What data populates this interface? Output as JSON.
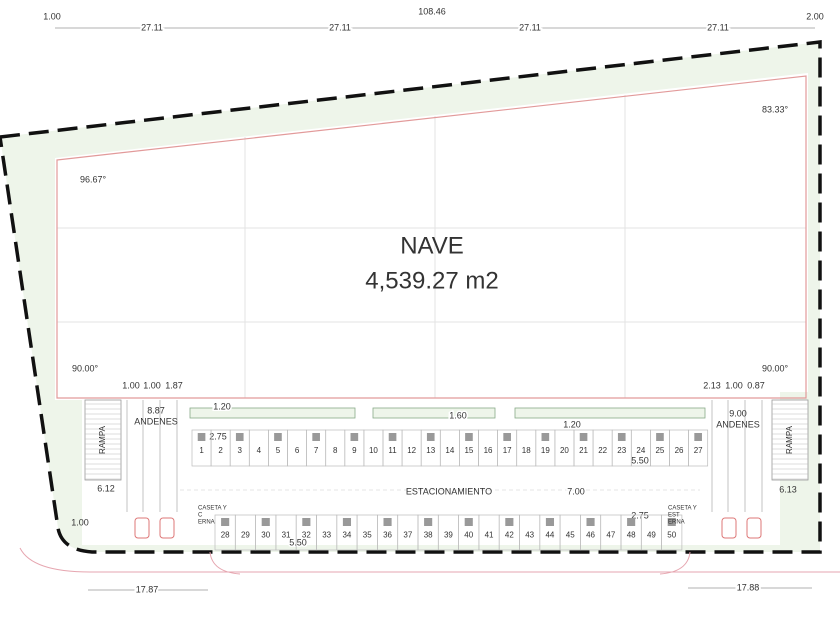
{
  "top_dimensions": {
    "left_offset": "1.00",
    "spans": [
      "27.11",
      "27.11",
      "27.11",
      "27.11"
    ],
    "total": "108.46",
    "right_offset": "2.00"
  },
  "nave": {
    "title": "NAVE",
    "area": "4,539.27 m2"
  },
  "angles": [
    "96.67°",
    "83.33°",
    "90.00°",
    "90.00°"
  ],
  "left_dock": {
    "widths": [
      "1.00",
      "1.00",
      "1.87"
    ],
    "total": "8.87",
    "label": "ANDENES",
    "ramp": "RAMPA",
    "ramp_width": "6.12"
  },
  "right_dock": {
    "widths": [
      "2.13",
      "1.00",
      "0.87"
    ],
    "total": "9.00",
    "label": "ANDENES",
    "ramp": "RAMPA",
    "ramp_width": "6.13"
  },
  "parking": {
    "label": "ESTACIONAMIENTO",
    "dimensions": [
      "1.20",
      "1.60",
      "1.20",
      "2.75",
      "5.50",
      "7.00",
      "2.75",
      "5.50"
    ],
    "top_row": [
      "1",
      "2",
      "3",
      "4",
      "5",
      "6",
      "7",
      "8",
      "9",
      "10",
      "11",
      "12",
      "13",
      "14",
      "15",
      "16",
      "17",
      "18",
      "19",
      "20",
      "21",
      "22",
      "23",
      "24",
      "25",
      "26",
      "27"
    ],
    "bottom_row": [
      "28",
      "29",
      "30",
      "31",
      "32",
      "33",
      "34",
      "35",
      "36",
      "37",
      "38",
      "39",
      "40",
      "41",
      "42",
      "43",
      "44",
      "45",
      "46",
      "47",
      "48",
      "49",
      "50"
    ]
  },
  "guardhouses": [
    {
      "lines": [
        "CASETA Y",
        "C",
        "ERNA"
      ]
    },
    {
      "lines": [
        "CASETA Y",
        "EST",
        "ERNA"
      ]
    }
  ],
  "bottom_dimensions": {
    "left_edge": "1.00",
    "left": "17.87",
    "right": "17.88"
  }
}
